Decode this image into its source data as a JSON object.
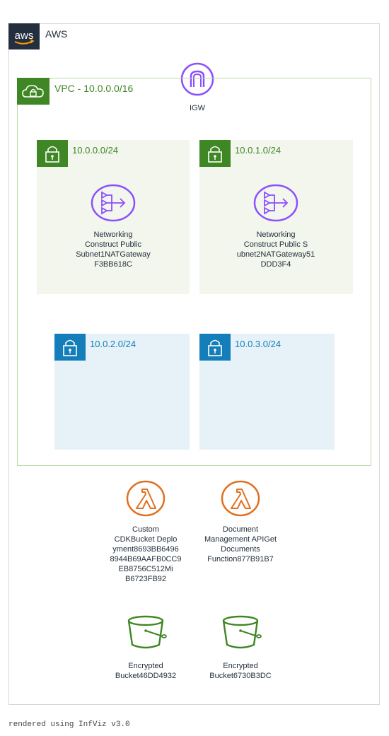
{
  "cloud": {
    "title": "AWS",
    "badge_text": "aws"
  },
  "vpc": {
    "title": "VPC - 10.0.0.0/16"
  },
  "igw": {
    "label": "IGW"
  },
  "subnets": [
    {
      "cidr": "10.0.0.0/24",
      "kind": "public"
    },
    {
      "cidr": "10.0.1.0/24",
      "kind": "public"
    },
    {
      "cidr": "10.0.2.0/24",
      "kind": "private"
    },
    {
      "cidr": "10.0.3.0/24",
      "kind": "private"
    }
  ],
  "nat_gateways": [
    {
      "label": "Networking\nConstruct Public\nSubnet1NATGateway\nF3BB618C",
      "icon": "nat-gateway-icon"
    },
    {
      "label": "Networking\nConstruct Public S\nubnet2NATGateway51\nDDD3F4",
      "icon": "nat-gateway-icon"
    }
  ],
  "lambdas": [
    {
      "label": "Custom\nCDKBucket Deplo\nyment8693BB6496\n8944B69AAFB0CC9\nEB8756C512Mi\nB6723FB92",
      "icon": "lambda-icon"
    },
    {
      "label": "Document\nManagement APIGet\nDocuments\nFunction877B91B7",
      "icon": "lambda-icon"
    }
  ],
  "buckets": [
    {
      "label": "Encrypted\nBucket46DD4932",
      "icon": "s3-bucket-icon"
    },
    {
      "label": "Encrypted\nBucket6730B3DC",
      "icon": "s3-bucket-icon"
    }
  ],
  "footer": {
    "text": "rendered using InfViz v3.0"
  },
  "colors": {
    "aws_dark": "#232f3e",
    "vpc_green": "#3f8624",
    "private_blue": "#147eba",
    "public_bg": "#f2f6ec",
    "private_bg": "#e6f1f8",
    "purple": "#8c4fff",
    "orange": "#e07020",
    "s3_green": "#3f8624"
  }
}
